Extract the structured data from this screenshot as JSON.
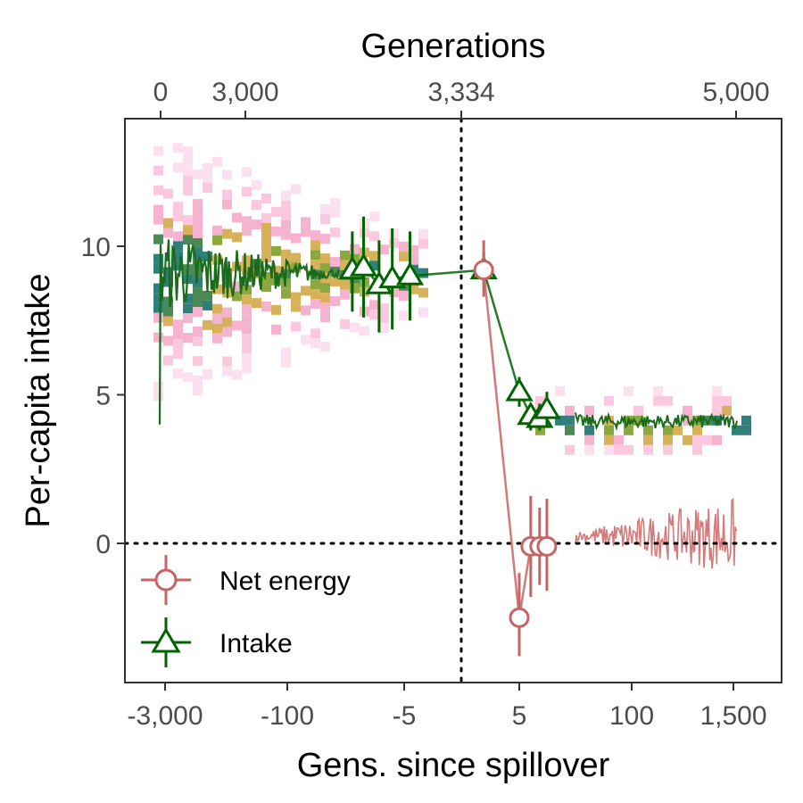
{
  "chart_data": {
    "type": "line",
    "title": "",
    "xlabel": "Gens. since spillover",
    "ylabel": "Per-capita intake",
    "top_axis_label": "Generations",
    "x_scale": "pseudo-log (symmetric)",
    "ylim": [
      -4.7,
      14
    ],
    "y_ticks": [
      0,
      5,
      10
    ],
    "x_ticks": [
      "-3,000",
      "-100",
      "-5",
      "5",
      "100",
      "1,500"
    ],
    "top_ticks": [
      "0",
      "3,000",
      "3,334",
      "5,000"
    ],
    "reference_lines": {
      "vertical_at": "spillover (0)",
      "horizontal_at_y": 0
    },
    "legend": {
      "position": "bottom-left",
      "entries": [
        "Net energy",
        "Intake"
      ]
    },
    "series": [
      {
        "name": "Intake",
        "color": "#006400",
        "marker": "triangle",
        "points": [
          {
            "x": -20,
            "y": 9.2,
            "lo": 7.8,
            "hi": 10.5
          },
          {
            "x": -15,
            "y": 9.3,
            "lo": 7.6,
            "hi": 11.0
          },
          {
            "x": -10,
            "y": 8.7,
            "lo": 7.1,
            "hi": 10.2
          },
          {
            "x": -7,
            "y": 8.9,
            "lo": 7.2,
            "hi": 10.6
          },
          {
            "x": -4,
            "y": 9.0,
            "lo": 7.5,
            "hi": 10.5
          },
          {
            "x": 1,
            "y": 9.2,
            "lo": 8.6,
            "hi": 9.8
          },
          {
            "x": 5,
            "y": 5.1,
            "lo": 4.6,
            "hi": 5.6
          },
          {
            "x": 7,
            "y": 4.3,
            "lo": 3.8,
            "hi": 4.7
          },
          {
            "x": 9,
            "y": 4.2,
            "lo": 3.8,
            "hi": 4.7
          },
          {
            "x": 11,
            "y": 4.5,
            "lo": 3.9,
            "hi": 5.1
          }
        ]
      },
      {
        "name": "Net energy",
        "color": "#c86464",
        "marker": "circle",
        "points": [
          {
            "x": 1,
            "y": 9.2,
            "lo": 8.3,
            "hi": 10.2
          },
          {
            "x": 5,
            "y": -2.5,
            "lo": -3.8,
            "hi": -1.0
          },
          {
            "x": 7,
            "y": -0.1,
            "lo": -1.8,
            "hi": 1.6
          },
          {
            "x": 9,
            "y": -0.1,
            "lo": -1.4,
            "hi": 1.2
          },
          {
            "x": 11,
            "y": -0.1,
            "lo": -1.6,
            "hi": 1.5
          }
        ]
      }
    ]
  }
}
